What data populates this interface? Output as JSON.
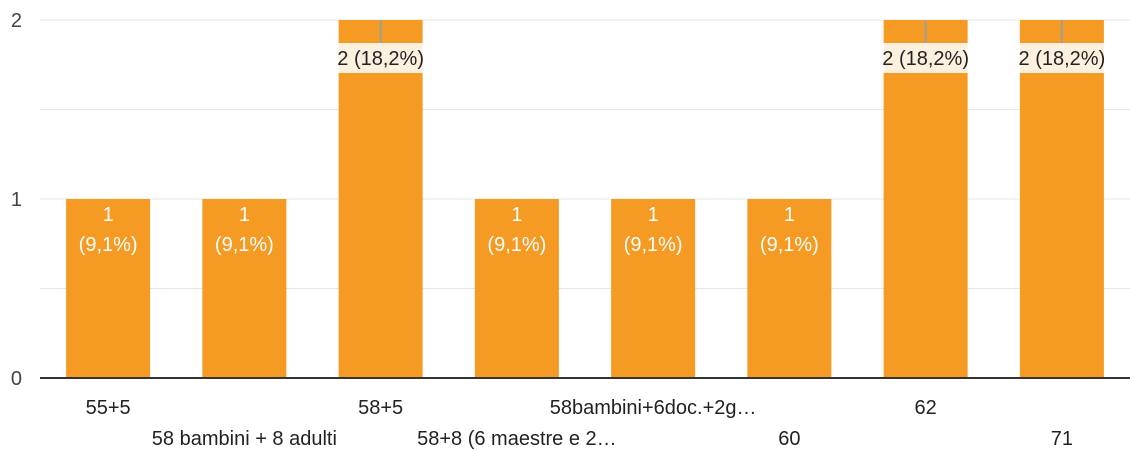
{
  "chart_data": {
    "type": "bar",
    "categories": [
      "55+5",
      "58 bambini + 8 adulti",
      "58+5",
      "58+8 (6 maestre e 2…",
      "58bambini+6doc.+2g…",
      "60",
      "62",
      "71"
    ],
    "values": [
      1,
      1,
      2,
      1,
      1,
      1,
      2,
      2
    ],
    "data_labels": [
      [
        "1",
        "(9,1%)"
      ],
      [
        "1",
        "(9,1%)"
      ],
      [
        "2 (18,2%)"
      ],
      [
        "1",
        "(9,1%)"
      ],
      [
        "1",
        "(9,1%)"
      ],
      [
        "1",
        "(9,1%)"
      ],
      [
        "2 (18,2%)"
      ],
      [
        "2 (18,2%)"
      ]
    ],
    "yticks": [
      "0",
      "1",
      "2"
    ],
    "ylim": [
      0,
      2
    ],
    "bar_color": "#F59A23",
    "grid": true
  }
}
